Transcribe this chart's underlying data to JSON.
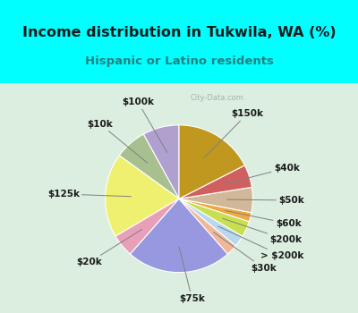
{
  "title": "Income distribution in Tukwila, WA (%)",
  "subtitle": "Hispanic or Latino residents",
  "watermark": "© City-Data.com",
  "labels": [
    "$100k",
    "$10k",
    "$125k",
    "$20k",
    "$75k",
    "$30k",
    "> $200k",
    "$200k",
    "$60k",
    "$50k",
    "$40k",
    "$150k"
  ],
  "sizes": [
    8.0,
    7.0,
    18.5,
    5.0,
    23.0,
    2.5,
    2.5,
    3.5,
    2.0,
    5.5,
    5.0,
    17.5
  ],
  "colors": [
    "#b0a0d0",
    "#a8c090",
    "#f0f070",
    "#e8a0b8",
    "#9898e0",
    "#f0b898",
    "#b8d8f0",
    "#c8e050",
    "#f0a840",
    "#d0b898",
    "#d06060",
    "#c09820"
  ],
  "bg_color_top": "#00ffff",
  "bg_color_chart_left": "#d0ead8",
  "bg_color_chart_right": "#e8f5f0",
  "title_color": "#1a1a1a",
  "subtitle_color": "#2a8080",
  "startangle": 90,
  "label_fontsize": 7.5,
  "title_fontsize": 11.5,
  "subtitle_fontsize": 9.5
}
